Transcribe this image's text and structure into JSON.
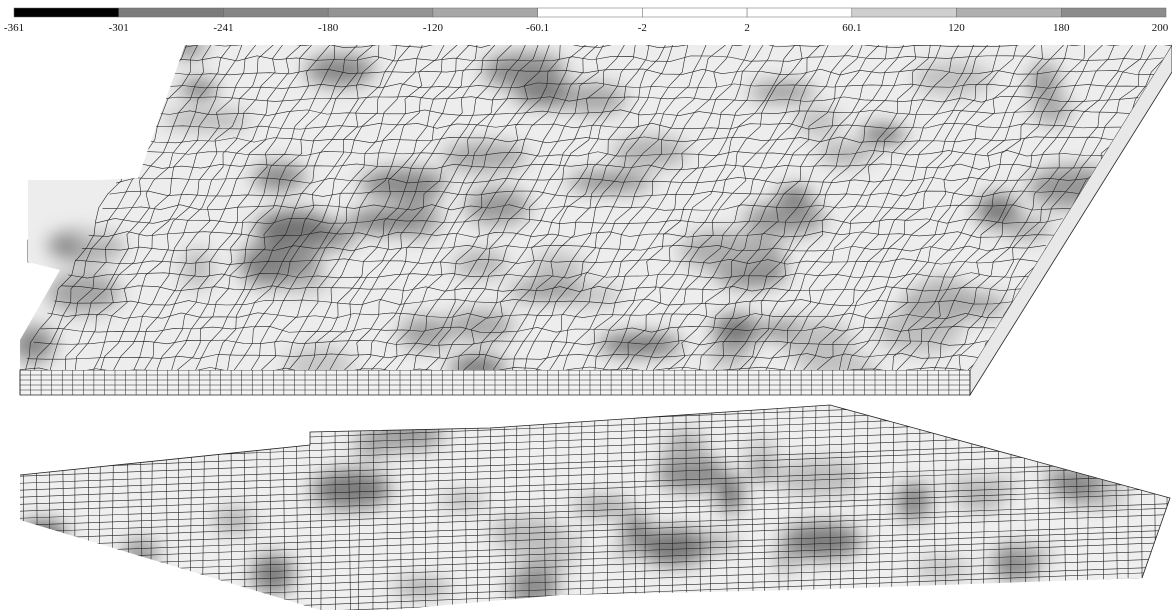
{
  "legend": {
    "colors": [
      "#000000",
      "#7b7b7b",
      "#858585",
      "#949494",
      "#a8a8a8",
      "#ffffff",
      "#ffffff",
      "#ffffff",
      "#cfcfcf",
      "#b0b0b0",
      "#8c8c8c"
    ],
    "labels": [
      "-361",
      "-301",
      "-241",
      "-180",
      "-120",
      "-60.1",
      "-2",
      "2",
      "60.1",
      "120",
      "180",
      "200"
    ]
  }
}
